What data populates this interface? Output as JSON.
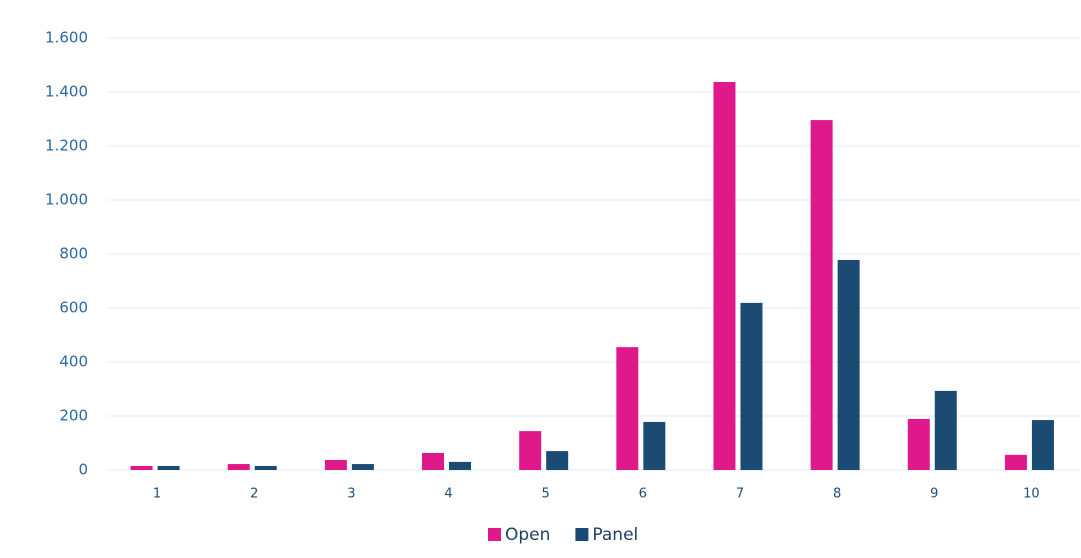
{
  "chart_data": {
    "type": "bar",
    "categories": [
      "1",
      "2",
      "3",
      "4",
      "5",
      "6",
      "7",
      "8",
      "9",
      "10"
    ],
    "series": [
      {
        "name": "Open",
        "color": "#e0198a",
        "values": [
          15,
          22,
          37,
          63,
          144,
          455,
          1437,
          1296,
          189,
          56
        ]
      },
      {
        "name": "Panel",
        "color": "#1b4a72",
        "values": [
          15,
          15,
          22,
          30,
          70,
          178,
          619,
          778,
          293,
          185
        ]
      }
    ],
    "ylim": [
      0,
      1600
    ],
    "yticks": [
      0,
      200,
      400,
      600,
      800,
      {
        "value": 1000,
        "label": "1.000"
      },
      {
        "value": 1200,
        "label": "1.200"
      },
      {
        "value": 1400,
        "label": "1.400"
      },
      {
        "value": 1600,
        "label": "1.600"
      }
    ],
    "grid": true,
    "legend": "bottom"
  }
}
